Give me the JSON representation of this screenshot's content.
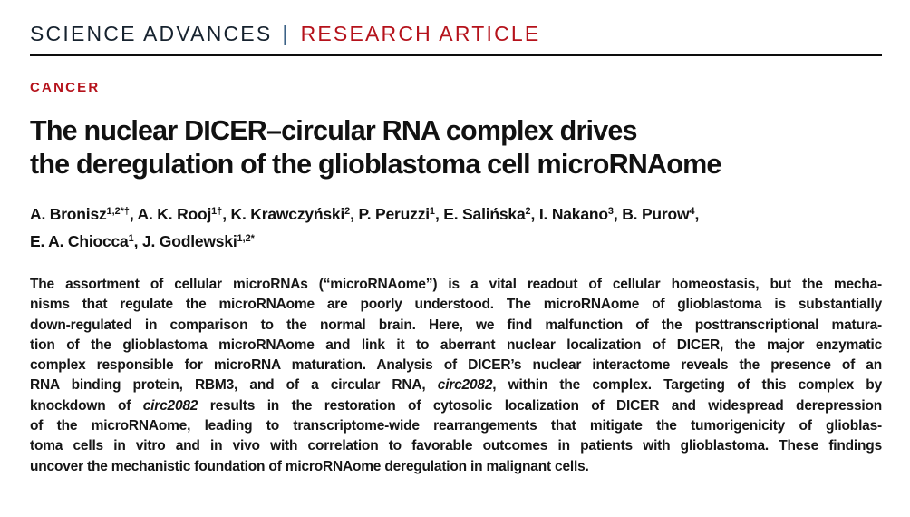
{
  "masthead": {
    "journal": "SCIENCE ADVANCES",
    "separator": "|",
    "section": "RESEARCH ARTICLE"
  },
  "article": {
    "category": "CANCER",
    "title_lines": [
      "The nuclear DICER–circular RNA complex drives",
      "the deregulation of the glioblastoma cell microRNAome"
    ],
    "author_lines": [
      [
        {
          "t": "A. Bronisz"
        },
        {
          "t": "1,2*†",
          "sup": true
        },
        {
          "t": ", A. K. Rooj"
        },
        {
          "t": "1†",
          "sup": true
        },
        {
          "t": ", K. Krawczyński"
        },
        {
          "t": "2",
          "sup": true
        },
        {
          "t": ", P. Peruzzi"
        },
        {
          "t": "1",
          "sup": true
        },
        {
          "t": ", E. Salińska"
        },
        {
          "t": "2",
          "sup": true
        },
        {
          "t": ", I. Nakano"
        },
        {
          "t": "3",
          "sup": true
        },
        {
          "t": ", B. Purow"
        },
        {
          "t": "4",
          "sup": true
        },
        {
          "t": ","
        }
      ],
      [
        {
          "t": "E. A. Chiocca"
        },
        {
          "t": "1",
          "sup": true
        },
        {
          "t": ", J. Godlewski"
        },
        {
          "t": "1,2*",
          "sup": true
        }
      ]
    ],
    "abstract_lines": [
      [
        {
          "t": "The assortment of cellular microRNAs (“microRNAome”) is a vital readout of cellular homeostasis, but the mecha-"
        }
      ],
      [
        {
          "t": "nisms that regulate the microRNAome are poorly understood. The microRNAome of glioblastoma is substantially"
        }
      ],
      [
        {
          "t": "down-regulated in comparison to the normal brain. Here, we find malfunction of the posttranscriptional matura-"
        }
      ],
      [
        {
          "t": "tion of the glioblastoma microRNAome and link it to aberrant nuclear localization of DICER, the major enzymatic"
        }
      ],
      [
        {
          "t": "complex responsible for microRNA maturation. Analysis of DICER’s nuclear interactome reveals the presence of an"
        }
      ],
      [
        {
          "t": "RNA binding protein, RBM3, and of a circular RNA, "
        },
        {
          "t": "circ2082",
          "i": true
        },
        {
          "t": ", within the complex. Targeting of this complex by"
        }
      ],
      [
        {
          "t": "knockdown of "
        },
        {
          "t": "circ2082",
          "i": true
        },
        {
          "t": " results in the restoration of cytosolic localization of DICER and widespread derepression"
        }
      ],
      [
        {
          "t": "of the microRNAome, leading to transcriptome-wide rearrangements that mitigate the tumorigenicity of glioblas-"
        }
      ],
      [
        {
          "t": "toma cells in vitro and in vivo with correlation to favorable outcomes in patients with glioblastoma. These findings"
        }
      ],
      [
        {
          "t": "uncover the mechanistic foundation of microRNAome deregulation in malignant cells."
        }
      ]
    ]
  },
  "colors": {
    "accent_red": "#b5121b",
    "journal_dark": "#16222e",
    "separator_blue": "#3c6286",
    "rule_black": "#0d0d0d",
    "body_text": "#161616"
  }
}
